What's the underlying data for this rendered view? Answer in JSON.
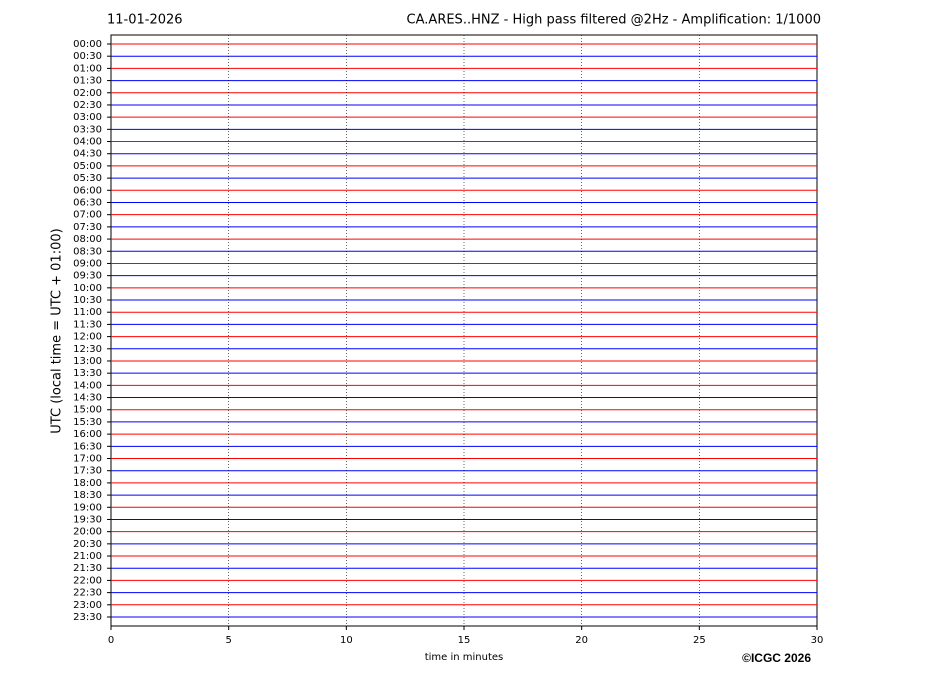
{
  "chart_data": {
    "type": "helicorder",
    "title_left": "11-01-2026",
    "title": "CA.ARES..HNZ - High pass filtered @2Hz - Amplification: 1/1000",
    "xlabel": "time in minutes",
    "ylabel": "UTC (local time = UTC + 01:00)",
    "copyright": "©ICGC 2026",
    "categories": [
      "00:00",
      "00:30",
      "01:00",
      "01:30",
      "02:00",
      "02:30",
      "03:00",
      "03:30",
      "04:00",
      "04:30",
      "05:00",
      "05:30",
      "06:00",
      "06:30",
      "07:00",
      "07:30",
      "08:00",
      "08:30",
      "09:00",
      "09:30",
      "10:00",
      "10:30",
      "11:00",
      "11:30",
      "12:00",
      "12:30",
      "13:00",
      "13:30",
      "14:00",
      "14:30",
      "15:00",
      "15:30",
      "16:00",
      "16:30",
      "17:00",
      "17:30",
      "18:00",
      "18:30",
      "19:00",
      "19:30",
      "20:00",
      "20:30",
      "21:00",
      "21:30",
      "22:00",
      "22:30",
      "23:00",
      "23:30"
    ],
    "trace_colors": [
      "#ff0000",
      "#0000ff"
    ],
    "xlim": [
      0,
      30
    ],
    "xticks": [
      0,
      5,
      10,
      15,
      20,
      25,
      30
    ],
    "grid": true
  }
}
